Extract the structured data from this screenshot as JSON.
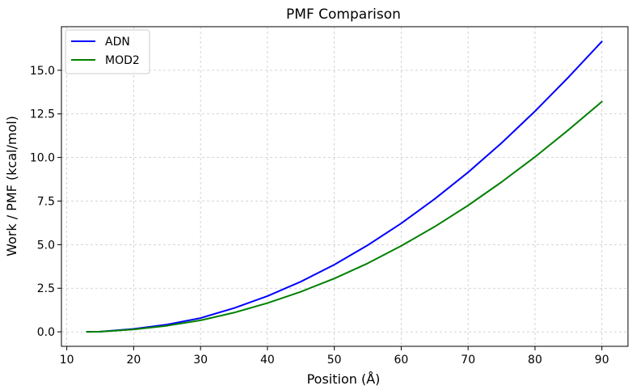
{
  "chart_data": {
    "type": "line",
    "title": "PMF Comparison",
    "xlabel": "Position (Å)",
    "ylabel": "Work / PMF (kcal/mol)",
    "xlim": [
      9.2,
      93.9
    ],
    "ylim": [
      -0.83,
      17.5
    ],
    "xticks": [
      10,
      20,
      30,
      40,
      50,
      60,
      70,
      80,
      90
    ],
    "xtick_labels": [
      "10",
      "20",
      "30",
      "40",
      "50",
      "60",
      "70",
      "80",
      "90"
    ],
    "yticks": [
      0,
      2.5,
      5,
      7.5,
      10,
      12.5,
      15
    ],
    "ytick_labels": [
      "0.0",
      "2.5",
      "5.0",
      "7.5",
      "10.0",
      "12.5",
      "15.0"
    ],
    "grid": true,
    "legend_position": "top-left",
    "x": [
      13,
      15,
      20,
      25,
      30,
      35,
      40,
      45,
      50,
      55,
      60,
      65,
      70,
      75,
      80,
      85,
      90
    ],
    "series": [
      {
        "name": "ADN",
        "color": "#0000ff",
        "values": [
          0.0,
          0.01,
          0.17,
          0.42,
          0.79,
          1.36,
          2.05,
          2.88,
          3.85,
          4.97,
          6.22,
          7.62,
          9.15,
          10.83,
          12.65,
          14.6,
          16.65
        ]
      },
      {
        "name": "MOD2",
        "color": "#008000",
        "values": [
          0.0,
          0.01,
          0.14,
          0.35,
          0.66,
          1.1,
          1.65,
          2.3,
          3.06,
          3.93,
          4.93,
          6.03,
          7.25,
          8.59,
          10.03,
          11.58,
          13.2
        ]
      }
    ]
  }
}
